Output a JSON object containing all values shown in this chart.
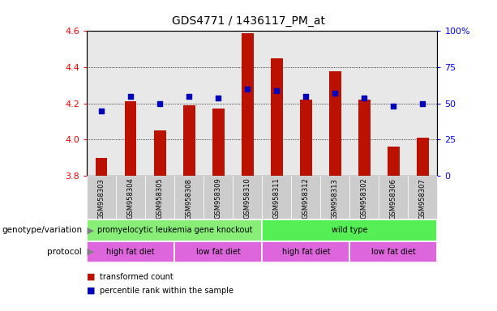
{
  "title": "GDS4771 / 1436117_PM_at",
  "samples": [
    "GSM958303",
    "GSM958304",
    "GSM958305",
    "GSM958308",
    "GSM958309",
    "GSM958310",
    "GSM958311",
    "GSM958312",
    "GSM958313",
    "GSM958302",
    "GSM958306",
    "GSM958307"
  ],
  "bar_values": [
    3.9,
    4.21,
    4.05,
    4.19,
    4.17,
    4.59,
    4.45,
    4.22,
    4.38,
    4.22,
    3.96,
    4.01
  ],
  "dot_values": [
    45,
    55,
    50,
    55,
    54,
    60,
    59,
    55,
    57,
    54,
    48,
    50
  ],
  "bar_bottom": 3.8,
  "ylim_left": [
    3.8,
    4.6
  ],
  "ylim_right": [
    0,
    100
  ],
  "yticks_left": [
    3.8,
    4.0,
    4.2,
    4.4,
    4.6
  ],
  "yticks_right": [
    0,
    25,
    50,
    75,
    100
  ],
  "bar_color": "#bb1100",
  "dot_color": "#0000bb",
  "genotype_colors": [
    "#88ee77",
    "#44ee44"
  ],
  "protocol_color": "#dd66dd",
  "sample_bg_color": "#cccccc",
  "geno_border_color": "#ffffff",
  "proto_border_color": "#ffffff",
  "genotype_groups": [
    {
      "label": "promyelocytic leukemia gene knockout",
      "start": 0,
      "end": 6
    },
    {
      "label": "wild type",
      "start": 6,
      "end": 12
    }
  ],
  "protocol_groups": [
    {
      "label": "high fat diet",
      "start": 0,
      "end": 3
    },
    {
      "label": "low fat diet",
      "start": 3,
      "end": 6
    },
    {
      "label": "high fat diet",
      "start": 6,
      "end": 9
    },
    {
      "label": "low fat diet",
      "start": 9,
      "end": 12
    }
  ],
  "legend_items": [
    {
      "color": "#bb1100",
      "label": "transformed count"
    },
    {
      "color": "#0000bb",
      "label": "percentile rank within the sample"
    }
  ],
  "grid_yticks": [
    4.0,
    4.2,
    4.4
  ]
}
